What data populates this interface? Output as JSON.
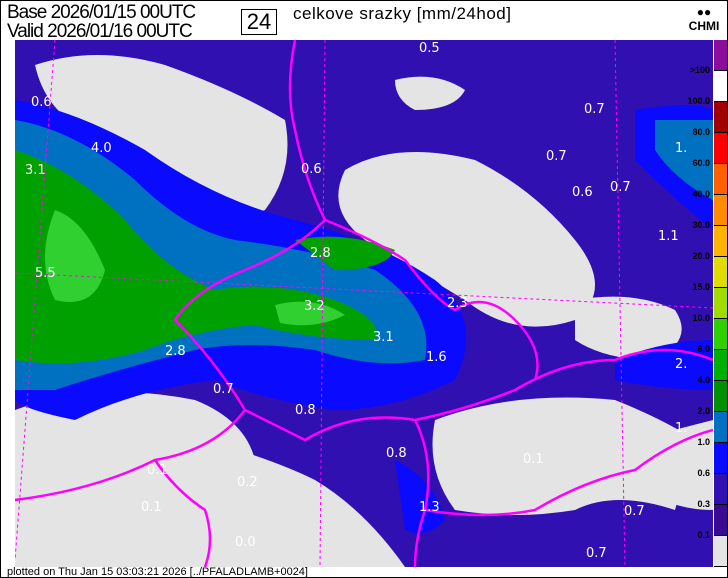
{
  "header": {
    "base_label": "Base",
    "base_time": "2026/01/15 00UTC",
    "valid_label": "Valid",
    "valid_time": "2026/01/16 00UTC",
    "forecast_hours": "24",
    "title": "celkove srazky [mm/24hod]",
    "logo_text": "CHMI"
  },
  "legend": {
    "colors": [
      "#8c0c9c",
      "#ffffff",
      "#a00000",
      "#ff0000",
      "#ff6000",
      "#ff8c00",
      "#ffb400",
      "#e0dc00",
      "#a0dc00",
      "#30d000",
      "#00b000",
      "#009000",
      "#0070c0",
      "#0a0aff",
      "#3010b0",
      "#3a0a90",
      "#e4e4e4"
    ],
    "labels": [
      ">100",
      "100.0",
      "80.0",
      "60.0",
      "40.0",
      "30.0",
      "20.0",
      "15.0",
      "10.0",
      "6.0",
      "4.0",
      "2.0",
      "1.0",
      "0.6",
      "0.3",
      "0.1"
    ]
  },
  "map": {
    "colors": {
      "background": "#3010b0",
      "dry": "#e4e4e4",
      "border": "#ff00ff",
      "blue": "#0a0aff",
      "steel": "#0070c0",
      "green": "#00a000",
      "bright_green": "#30d030"
    },
    "values": [
      "0.5",
      "0.7",
      "0.6",
      "4.0",
      "0.7",
      "3.1",
      "0.6",
      "0.6",
      "0.7",
      "1.1",
      "2.8",
      "5.5",
      "2.3",
      "3.2",
      "3.1",
      "1.6",
      "2.8",
      "0.7",
      "0.8",
      "0.8",
      "0.1",
      "0.1",
      "0.2",
      "0.1",
      "1.3",
      "0.7",
      "0.0",
      "0.7",
      "1.",
      "2.",
      "1."
    ]
  },
  "footer": {
    "text": "plotted on Thu Jan 15 03:03:21 2026 [../PFALADLAMB+0024]"
  }
}
